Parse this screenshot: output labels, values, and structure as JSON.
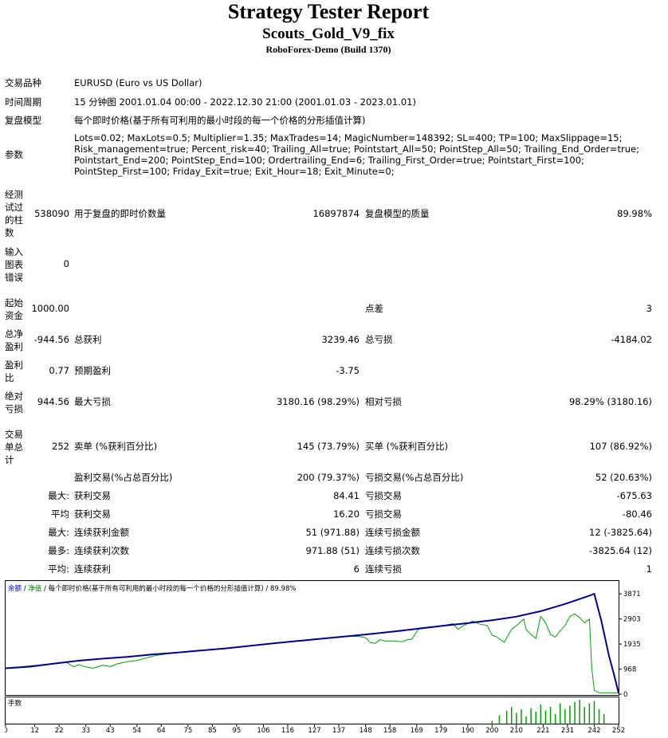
{
  "header": {
    "title": "Strategy Tester Report",
    "ea_name": "Scouts_Gold_V9_fix",
    "server": "RoboForex-Demo (Build 1370)"
  },
  "info": {
    "symbol_label": "交易品种",
    "symbol_value": "EURUSD (Euro vs US Dollar)",
    "period_label": "时间周期",
    "period_value": "15 分钟图 2001.01.04 00:00 - 2022.12.30 21:00 (2001.01.03 - 2023.01.01)",
    "model_label": "复盘模型",
    "model_value": "每个即时价格(基于所有可利用的最小时段的每一个价格的分形插值计算)",
    "params_label": "参数",
    "params_value": "Lots=0.02; MaxLots=0.5; Multiplier=1.35; MaxTrades=14; MagicNumber=148392; SL=400; TP=100; MaxSlippage=15; Risk_management=true; Percent_risk=40; Trailing_All=true; Pointstart_All=50; PointStep_All=50; Trailing_End_Order=true; Pointstart_End=200; PointStep_End=100; Ordertrailing_End=6; Trailing_First_Order=true; Pointstart_First=100; PointStep_First=100; Friday_Exit=true; Exit_Hour=18; Exit_Minute=0;"
  },
  "stats": {
    "bars_label": "经测试过的柱数",
    "bars_value": "538090",
    "ticks_label": "用于复盘的即时价数量",
    "ticks_value": "16897874",
    "quality_label": "复盘模型的质量",
    "quality_value": "89.98%",
    "errors_label": "输入图表错误",
    "errors_value": "0",
    "deposit_label": "起始资金",
    "deposit_value": "1000.00",
    "spread_label": "点差",
    "spread_value": "3",
    "net_label": "总净盈利",
    "net_value": "-944.56",
    "gross_profit_label": "总获利",
    "gross_profit_value": "3239.46",
    "gross_loss_label": "总亏损",
    "gross_loss_value": "-4184.02",
    "pf_label": "盈利比",
    "pf_value": "0.77",
    "payoff_label": "预期盈利",
    "payoff_value": "-3.75",
    "abs_dd_label": "绝对亏损",
    "abs_dd_value": "944.56",
    "max_dd_label": "最大亏损",
    "max_dd_value": "3180.16 (98.29%)",
    "rel_dd_label": "相对亏损",
    "rel_dd_value": "98.29% (3180.16)",
    "trades_label": "交易单总计",
    "trades_value": "252",
    "short_label": "卖单 (%获利百分比)",
    "short_value": "145 (73.79%)",
    "long_label": "买单 (%获利百分比)",
    "long_value": "107 (86.92%)",
    "win_label": "盈利交易(%占总百分比)",
    "win_value": "200 (79.37%)",
    "loss_label": "亏损交易(%占总百分比)",
    "loss_value": "52 (20.63%)",
    "max_prefix": "最大:",
    "largest_win_label": "获利交易",
    "largest_win_value": "84.41",
    "largest_loss_label": "亏损交易",
    "largest_loss_value": "-675.63",
    "avg_prefix": "平均",
    "avg_win_label": "获利交易",
    "avg_win_value": "16.20",
    "avg_loss_label": "亏损交易",
    "avg_loss_value": "-80.46",
    "max2_prefix": "最大:",
    "cons_win_amt_label": "连续获利金额",
    "cons_win_amt_value": "51 (971.88)",
    "cons_loss_amt_label": "连续亏损金额",
    "cons_loss_amt_value": "12 (-3825.64)",
    "most_prefix": "最多:",
    "cons_win_cnt_label": "连续获利次数",
    "cons_win_cnt_value": "971.88 (51)",
    "cons_loss_cnt_label": "连续亏损次数",
    "cons_loss_cnt_value": "-3825.64 (12)",
    "avg2_prefix": "平均:",
    "avg_cons_win_label": "连续获利",
    "avg_cons_win_value": "6",
    "avg_cons_loss_label": "连续亏损",
    "avg_cons_loss_value": "1"
  },
  "chart_data": {
    "type": "line",
    "legend": [
      "余额",
      "净值",
      "每个即时价格(基于所有可利用的最小时段的每一个价格的分形插值计算)",
      "89.98%"
    ],
    "colors": {
      "balance": "#00008b",
      "equity": "#00a000",
      "volume": "#00a000",
      "legend_link": "#0000cc"
    },
    "y_ticks": [
      0,
      968,
      1935,
      2903,
      3871
    ],
    "ylim": [
      0,
      4150
    ],
    "x_ticks": [
      0,
      12,
      22,
      33,
      43,
      54,
      64,
      75,
      85,
      95,
      106,
      116,
      127,
      137,
      148,
      158,
      169,
      179,
      190,
      200,
      210,
      221,
      231,
      242,
      252
    ],
    "xlim": [
      0,
      252
    ],
    "volume_label": "手数",
    "balance": [
      [
        0,
        1000
      ],
      [
        10,
        1060
      ],
      [
        20,
        1180
      ],
      [
        30,
        1290
      ],
      [
        40,
        1370
      ],
      [
        50,
        1440
      ],
      [
        60,
        1530
      ],
      [
        70,
        1600
      ],
      [
        80,
        1680
      ],
      [
        90,
        1760
      ],
      [
        100,
        1860
      ],
      [
        110,
        1960
      ],
      [
        120,
        2050
      ],
      [
        130,
        2140
      ],
      [
        140,
        2230
      ],
      [
        150,
        2320
      ],
      [
        160,
        2420
      ],
      [
        170,
        2530
      ],
      [
        180,
        2640
      ],
      [
        190,
        2740
      ],
      [
        200,
        2850
      ],
      [
        210,
        2990
      ],
      [
        220,
        3200
      ],
      [
        230,
        3480
      ],
      [
        240,
        3800
      ],
      [
        242,
        3871
      ],
      [
        245,
        2800
      ],
      [
        248,
        1500
      ],
      [
        250,
        800
      ],
      [
        252,
        50
      ]
    ],
    "equity": [
      [
        0,
        1000
      ],
      [
        25,
        1230
      ],
      [
        28,
        1050
      ],
      [
        30,
        1140
      ],
      [
        33,
        1050
      ],
      [
        36,
        1000
      ],
      [
        40,
        1120
      ],
      [
        43,
        1060
      ],
      [
        46,
        1170
      ],
      [
        50,
        1250
      ],
      [
        54,
        1300
      ],
      [
        62,
        1500
      ],
      [
        70,
        1600
      ],
      [
        80,
        1680
      ],
      [
        90,
        1760
      ],
      [
        100,
        1860
      ],
      [
        110,
        1960
      ],
      [
        120,
        2050
      ],
      [
        130,
        2140
      ],
      [
        140,
        2230
      ],
      [
        145,
        2230
      ],
      [
        148,
        2180
      ],
      [
        150,
        1990
      ],
      [
        152,
        1960
      ],
      [
        154,
        2100
      ],
      [
        156,
        2050
      ],
      [
        158,
        2050
      ],
      [
        160,
        2050
      ],
      [
        163,
        2020
      ],
      [
        165,
        2100
      ],
      [
        167,
        2120
      ],
      [
        170,
        2550
      ],
      [
        175,
        2600
      ],
      [
        180,
        2650
      ],
      [
        184,
        2720
      ],
      [
        186,
        2500
      ],
      [
        188,
        2630
      ],
      [
        192,
        2820
      ],
      [
        195,
        2700
      ],
      [
        198,
        2650
      ],
      [
        200,
        2280
      ],
      [
        202,
        2200
      ],
      [
        205,
        2000
      ],
      [
        208,
        2500
      ],
      [
        211,
        2720
      ],
      [
        213,
        2900
      ],
      [
        214,
        2500
      ],
      [
        216,
        2300
      ],
      [
        218,
        2150
      ],
      [
        220,
        3000
      ],
      [
        222,
        2750
      ],
      [
        224,
        2300
      ],
      [
        226,
        2200
      ],
      [
        228,
        2450
      ],
      [
        230,
        2650
      ],
      [
        232,
        3000
      ],
      [
        234,
        3100
      ],
      [
        236,
        2950
      ],
      [
        238,
        2750
      ],
      [
        240,
        2900
      ],
      [
        241,
        1000
      ],
      [
        242,
        150
      ],
      [
        244,
        50
      ],
      [
        252,
        50
      ]
    ],
    "volume": [
      [
        200,
        0.12
      ],
      [
        203,
        0.35
      ],
      [
        206,
        0.55
      ],
      [
        208,
        0.7
      ],
      [
        210,
        0.45
      ],
      [
        212,
        0.6
      ],
      [
        214,
        0.3
      ],
      [
        216,
        0.65
      ],
      [
        218,
        0.5
      ],
      [
        220,
        0.8
      ],
      [
        222,
        0.55
      ],
      [
        224,
        0.7
      ],
      [
        226,
        0.4
      ],
      [
        228,
        0.85
      ],
      [
        230,
        0.6
      ],
      [
        232,
        0.75
      ],
      [
        234,
        0.9
      ],
      [
        236,
        1.0
      ],
      [
        238,
        0.7
      ],
      [
        240,
        0.85
      ],
      [
        242,
        0.95
      ],
      [
        244,
        0.6
      ],
      [
        246,
        0.4
      ]
    ]
  }
}
